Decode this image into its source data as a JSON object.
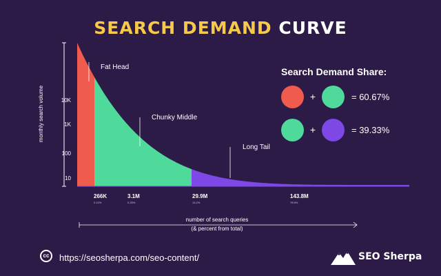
{
  "title_part1": "SEARCH DEMAND",
  "title_part2": "CURVE",
  "colors": {
    "background": "#2c1a47",
    "head": "#ef5b4c",
    "middle": "#4fd99a",
    "tail": "#7d48e6",
    "title_accent": "#f7c948"
  },
  "chart_data": {
    "type": "area",
    "title": "SEARCH DEMAND CURVE",
    "ylabel": "monthly search volume",
    "xlabel_line1": "number of search queries",
    "xlabel_line2": "(& percent from total)",
    "y_scale": "log",
    "y_ticks": [
      "10K",
      "1K",
      "100",
      "10"
    ],
    "x_ticks": [
      {
        "label": "266K",
        "sub": "0.12%"
      },
      {
        "label": "3.1M",
        "sub": "0.33%"
      },
      {
        "label": "29.9M",
        "sub": "13.2%"
      },
      {
        "label": "143.8M",
        "sub": "78.6%"
      }
    ],
    "segments": [
      {
        "label": "Fat Head",
        "color": "#ef5b4c"
      },
      {
        "label": "Chunky Middle",
        "color": "#4fd99a"
      },
      {
        "label": "Long Tail",
        "color": "#7d48e6"
      }
    ],
    "grid": false,
    "legend": "right"
  },
  "share": {
    "title": "Search Demand Share:",
    "rows": [
      {
        "left_color": "#ef5b4c",
        "right_color": "#4fd99a",
        "plus": "+",
        "value": "= 60.67%"
      },
      {
        "left_color": "#4fd99a",
        "right_color": "#7d48e6",
        "plus": "+",
        "value": "= 39.33%"
      }
    ]
  },
  "footer": {
    "cc_label": "cc",
    "url": "https://seosherpa.com/seo-content/",
    "brand": "SEO Sherpa"
  }
}
